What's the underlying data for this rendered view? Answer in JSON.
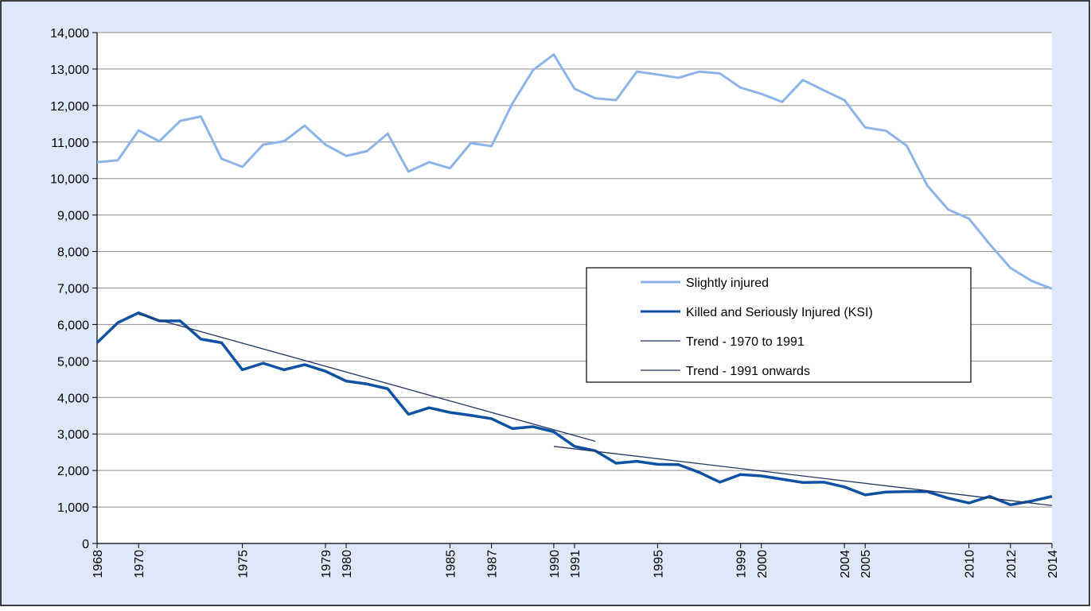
{
  "chart_data": {
    "type": "line",
    "x": [
      1968,
      1969,
      1970,
      1971,
      1972,
      1973,
      1974,
      1975,
      1976,
      1977,
      1978,
      1979,
      1980,
      1981,
      1982,
      1983,
      1984,
      1985,
      1986,
      1987,
      1988,
      1989,
      1990,
      1991,
      1992,
      1993,
      1994,
      1995,
      1996,
      1997,
      1998,
      1999,
      2000,
      2001,
      2002,
      2003,
      2004,
      2005,
      2006,
      2007,
      2008,
      2009,
      2010,
      2011,
      2012,
      2013,
      2014
    ],
    "series": [
      {
        "name": "Slightly injured",
        "color": "#8db4e8",
        "values": [
          10450,
          10500,
          11320,
          11020,
          11580,
          11700,
          10540,
          10320,
          10930,
          11020,
          11450,
          10930,
          10620,
          10750,
          11230,
          10190,
          10450,
          10280,
          10970,
          10890,
          12050,
          12970,
          13400,
          12460,
          12200,
          12150,
          12930,
          12850,
          12760,
          12930,
          12880,
          12490,
          12320,
          12100,
          12700,
          12420,
          12150,
          11400,
          11310,
          10900,
          9800,
          9150,
          8900,
          8200,
          7550,
          7200,
          6980
        ]
      },
      {
        "name": "Killed and Seriously Injured (KSI)",
        "color": "#0f52a4",
        "values": [
          5500,
          6050,
          6320,
          6100,
          6100,
          5600,
          5500,
          4760,
          4940,
          4760,
          4900,
          4720,
          4450,
          4370,
          4240,
          3540,
          3720,
          3590,
          3510,
          3420,
          3150,
          3200,
          3060,
          2660,
          2540,
          2200,
          2250,
          2170,
          2160,
          1950,
          1680,
          1890,
          1850,
          1760,
          1670,
          1680,
          1550,
          1330,
          1410,
          1420,
          1420,
          1240,
          1110,
          1290,
          1060,
          1160,
          1290
        ]
      },
      {
        "name": "Trend - 1970 to 1991",
        "color": "#1f3864",
        "x": [
          1970,
          1992
        ],
        "values": [
          6280,
          2800
        ]
      },
      {
        "name": "Trend - 1991 onwards",
        "color": "#1f3864",
        "x": [
          1990,
          2014
        ],
        "values": [
          2660,
          1040
        ]
      }
    ],
    "xlim": [
      1968,
      2014
    ],
    "xticks": [
      1968,
      1970,
      1975,
      1979,
      1980,
      1985,
      1987,
      1990,
      1991,
      1995,
      1999,
      2000,
      2004,
      2005,
      2010,
      2012,
      2014
    ],
    "ylim": [
      0,
      14000
    ],
    "yticks": [
      0,
      {
        "value": 1000,
        "label": "1,000"
      },
      {
        "value": 2000,
        "label": "2,000"
      },
      {
        "value": 3000,
        "label": "3,000"
      },
      {
        "value": 4000,
        "label": "4,000"
      },
      {
        "value": 5000,
        "label": "5,000"
      },
      {
        "value": 6000,
        "label": "6,000"
      },
      {
        "value": 7000,
        "label": "7,000"
      },
      {
        "value": 8000,
        "label": "8,000"
      },
      {
        "value": 9000,
        "label": "9,000"
      },
      {
        "value": 10000,
        "label": "10,000"
      },
      {
        "value": 11000,
        "label": "11,000"
      },
      {
        "value": 12000,
        "label": "12,000"
      },
      {
        "value": 13000,
        "label": "13,000"
      },
      {
        "value": 14000,
        "label": "14,000"
      }
    ],
    "grid": true
  }
}
